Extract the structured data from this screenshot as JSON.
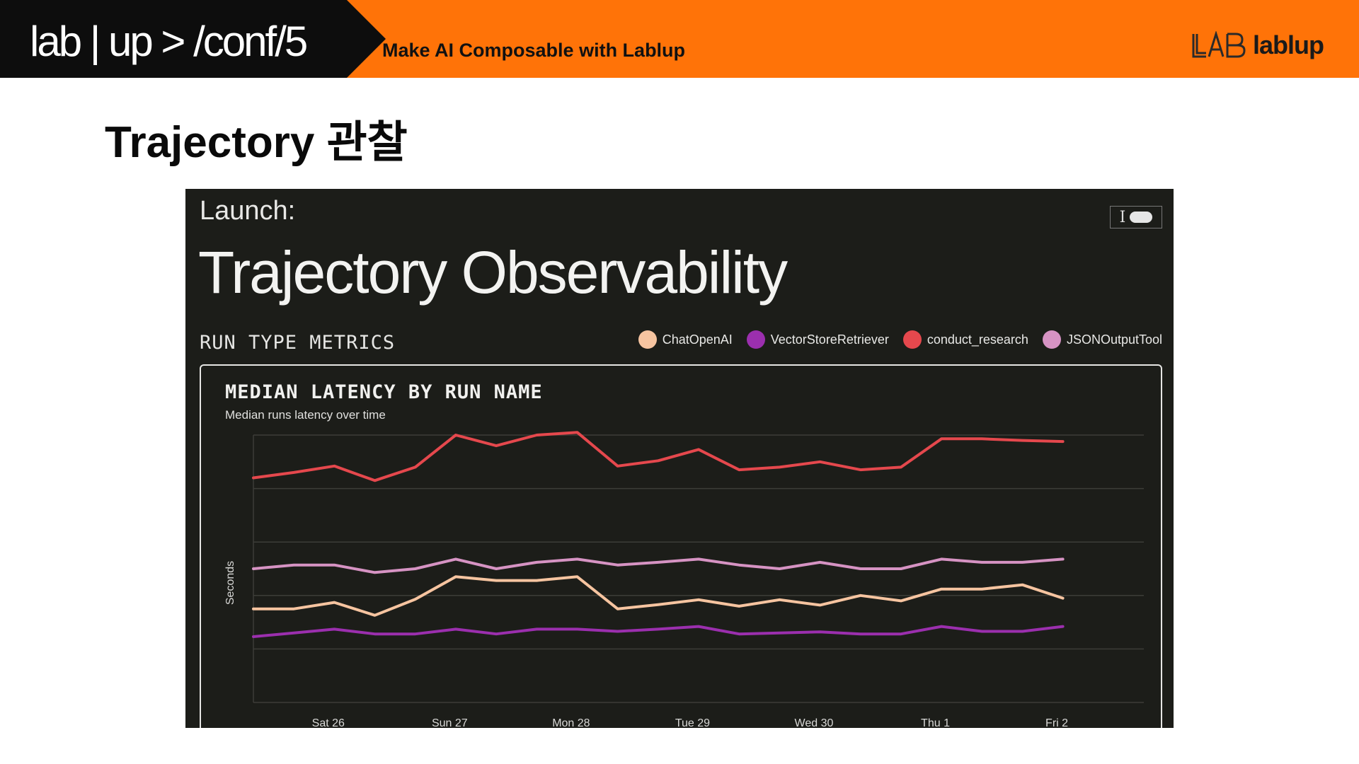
{
  "header": {
    "brand": "lab | up > /conf/5",
    "tagline": "Make AI Composable with Lablup",
    "logo_text": "lablup"
  },
  "slide": {
    "title": "Trajectory 관찰"
  },
  "panel": {
    "launch_label": "Launch:",
    "title": "Trajectory Observability",
    "section_label": "RUN TYPE METRICS",
    "corner_icon_glyph": "I"
  },
  "chart_data": {
    "type": "line",
    "title": "MEDIAN LATENCY BY RUN NAME",
    "subtitle": "Median runs latency over time",
    "xlabel": "",
    "ylabel": "Seconds",
    "ylim": [
      0,
      5
    ],
    "grid": true,
    "legend_position": "top-right",
    "x_ticks": [
      "Sat 26",
      "Sun 27",
      "Mon 28",
      "Tue 29",
      "Wed 30",
      "Thu 1",
      "Fri 2"
    ],
    "x_tick_positions": [
      1.85,
      4.85,
      7.85,
      10.85,
      13.85,
      16.85,
      19.85
    ],
    "x": [
      0,
      1,
      2,
      3,
      4,
      5,
      6,
      7,
      8,
      9,
      10,
      11,
      12,
      13,
      14,
      15,
      16,
      17,
      18,
      19,
      20,
      21,
      22
    ],
    "series": [
      {
        "name": "ChatOpenAI",
        "color": "#f6c4a0",
        "values": [
          1.75,
          1.75,
          1.87,
          1.63,
          1.93,
          2.35,
          2.28,
          2.28,
          2.35,
          1.75,
          1.83,
          1.92,
          1.8,
          1.92,
          1.82,
          2.0,
          1.9,
          2.12,
          2.12,
          2.2,
          1.95,
          null,
          null
        ]
      },
      {
        "name": "VectorStoreRetriever",
        "color": "#9b2fae",
        "values": [
          1.23,
          1.3,
          1.37,
          1.28,
          1.28,
          1.37,
          1.28,
          1.37,
          1.37,
          1.33,
          1.37,
          1.42,
          1.28,
          1.3,
          1.32,
          1.28,
          1.28,
          1.42,
          1.33,
          1.33,
          1.42,
          null,
          null
        ]
      },
      {
        "name": "conduct_research",
        "color": "#e5484d",
        "values": [
          4.2,
          4.3,
          4.42,
          4.15,
          4.4,
          5.0,
          4.8,
          5.0,
          5.05,
          4.42,
          4.52,
          4.73,
          4.35,
          4.4,
          4.5,
          4.35,
          4.4,
          4.93,
          4.93,
          4.9,
          4.88,
          null,
          null
        ]
      },
      {
        "name": "JSONOutputTool",
        "color": "#d693c3",
        "values": [
          2.5,
          2.57,
          2.57,
          2.43,
          2.5,
          2.68,
          2.5,
          2.62,
          2.68,
          2.57,
          2.62,
          2.68,
          2.57,
          2.5,
          2.62,
          2.5,
          2.5,
          2.68,
          2.62,
          2.62,
          2.68,
          null,
          null
        ]
      }
    ]
  }
}
